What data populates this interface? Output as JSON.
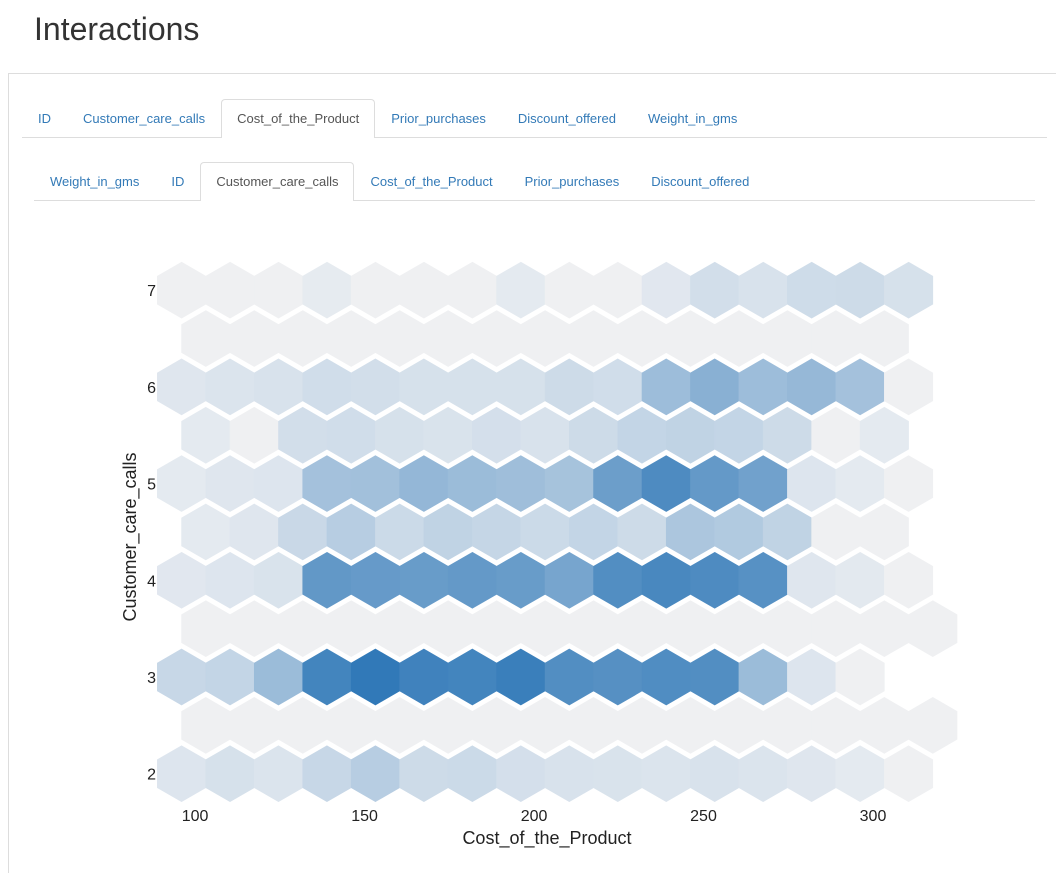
{
  "page": {
    "title": "Interactions"
  },
  "tabs_outer": {
    "items": [
      "ID",
      "Customer_care_calls",
      "Cost_of_the_Product",
      "Prior_purchases",
      "Discount_offered",
      "Weight_in_gms"
    ],
    "active": "Cost_of_the_Product"
  },
  "tabs_inner": {
    "items": [
      "Weight_in_gms",
      "ID",
      "Customer_care_calls",
      "Cost_of_the_Product",
      "Prior_purchases",
      "Discount_offered"
    ],
    "active": "Customer_care_calls"
  },
  "chart_data": {
    "type": "heatmap",
    "subtype": "hexbin",
    "xlabel": "Cost_of_the_Product",
    "ylabel": "Customer_care_calls",
    "xlim": [
      92,
      318
    ],
    "ylim": [
      1.78,
      7.25
    ],
    "xticks": [
      100,
      150,
      200,
      250,
      300
    ],
    "yticks": [
      2,
      3,
      4,
      5,
      6,
      7
    ],
    "bin_width": 14.3,
    "x_start": 96.0,
    "y_start": 2.0,
    "y_step": 0.5,
    "grid": false,
    "legend": "none",
    "colors": {
      "empty": "#eff0f2",
      "low": "#e8ecf1",
      "high": "#3179b8"
    },
    "intensity_rows": [
      {
        "y": 2.0,
        "values": [
          0.06,
          0.1,
          0.07,
          0.18,
          0.27,
          0.15,
          0.16,
          0.11,
          0.09,
          0.08,
          0.07,
          0.09,
          0.07,
          0.05,
          0.02,
          0.0
        ]
      },
      {
        "y": 2.5,
        "values": [
          0.0,
          0.0,
          0.0,
          0.0,
          0.0,
          0.0,
          0.0,
          0.0,
          0.0,
          0.0,
          0.0,
          0.0,
          0.0,
          0.0,
          0.0,
          0.0
        ]
      },
      {
        "y": 3.0,
        "values": [
          0.18,
          0.2,
          0.42,
          0.9,
          1.0,
          0.92,
          0.9,
          0.95,
          0.82,
          0.8,
          0.83,
          0.82,
          0.42,
          0.06,
          0.0
        ]
      },
      {
        "y": 3.5,
        "values": [
          0.0,
          0.0,
          0.0,
          0.0,
          0.0,
          0.0,
          0.0,
          0.0,
          0.0,
          0.0,
          0.0,
          0.0,
          0.0,
          0.0,
          0.0,
          0.0
        ]
      },
      {
        "y": 4.0,
        "values": [
          0.04,
          0.06,
          0.08,
          0.73,
          0.71,
          0.7,
          0.72,
          0.7,
          0.62,
          0.82,
          0.87,
          0.84,
          0.79,
          0.05,
          0.03,
          0.0
        ]
      },
      {
        "y": 4.5,
        "values": [
          0.02,
          0.05,
          0.17,
          0.27,
          0.16,
          0.22,
          0.19,
          0.16,
          0.2,
          0.15,
          0.33,
          0.3,
          0.22,
          0.0,
          0.0
        ]
      },
      {
        "y": 5.0,
        "values": [
          0.02,
          0.05,
          0.06,
          0.37,
          0.38,
          0.46,
          0.42,
          0.4,
          0.36,
          0.68,
          0.84,
          0.72,
          0.65,
          0.06,
          0.02,
          0.0
        ]
      },
      {
        "y": 5.5,
        "values": [
          0.02,
          0.0,
          0.12,
          0.13,
          0.1,
          0.08,
          0.11,
          0.09,
          0.15,
          0.2,
          0.22,
          0.2,
          0.15,
          0.0,
          0.02
        ]
      },
      {
        "y": 6.0,
        "values": [
          0.05,
          0.07,
          0.09,
          0.13,
          0.12,
          0.1,
          0.1,
          0.1,
          0.15,
          0.13,
          0.41,
          0.52,
          0.41,
          0.45,
          0.37,
          0.0
        ]
      },
      {
        "y": 6.5,
        "values": [
          0.0,
          0.0,
          0.0,
          0.0,
          0.0,
          0.0,
          0.0,
          0.0,
          0.0,
          0.0,
          0.0,
          0.0,
          0.0,
          0.0,
          0.0
        ]
      },
      {
        "y": 7.0,
        "values": [
          0.0,
          0.0,
          0.0,
          0.01,
          0.0,
          0.0,
          0.0,
          0.02,
          0.0,
          0.0,
          0.04,
          0.12,
          0.09,
          0.14,
          0.15,
          0.1
        ]
      }
    ]
  }
}
